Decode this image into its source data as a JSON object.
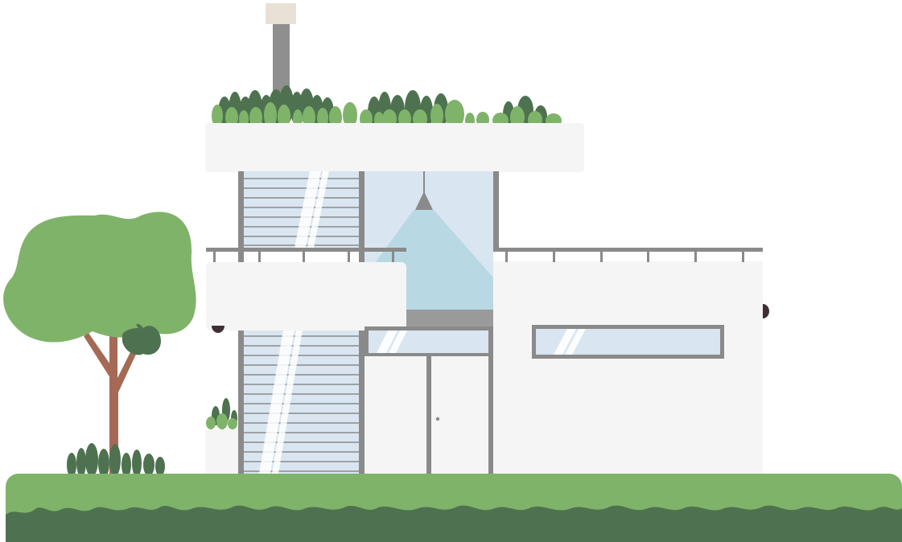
{
  "scene": {
    "subject": "modern-two-storey-house",
    "colors": {
      "background": "#ffffff",
      "wall": "#f5f5f5",
      "frame": "#8a8a8a",
      "glass": "#d9e6f1",
      "glass_highlight": "#ffffff",
      "light_beam": "#b8d9e4",
      "lamp": "#8a8a8a",
      "chimney_cap": "#e9e1d6",
      "grass_light": "#7fb36a",
      "grass_dark": "#4e7250",
      "tree_trunk": "#a56a55",
      "wall_lamp": "#3f2f33"
    },
    "elements": [
      "chimney",
      "roof-garden",
      "roof-slab",
      "stair-window",
      "upper-window",
      "pendant-lamp",
      "light-beam",
      "balcony-left",
      "balcony-right",
      "right-wing",
      "horizontal-window",
      "front-door",
      "tree",
      "shrubs",
      "lawn"
    ]
  }
}
